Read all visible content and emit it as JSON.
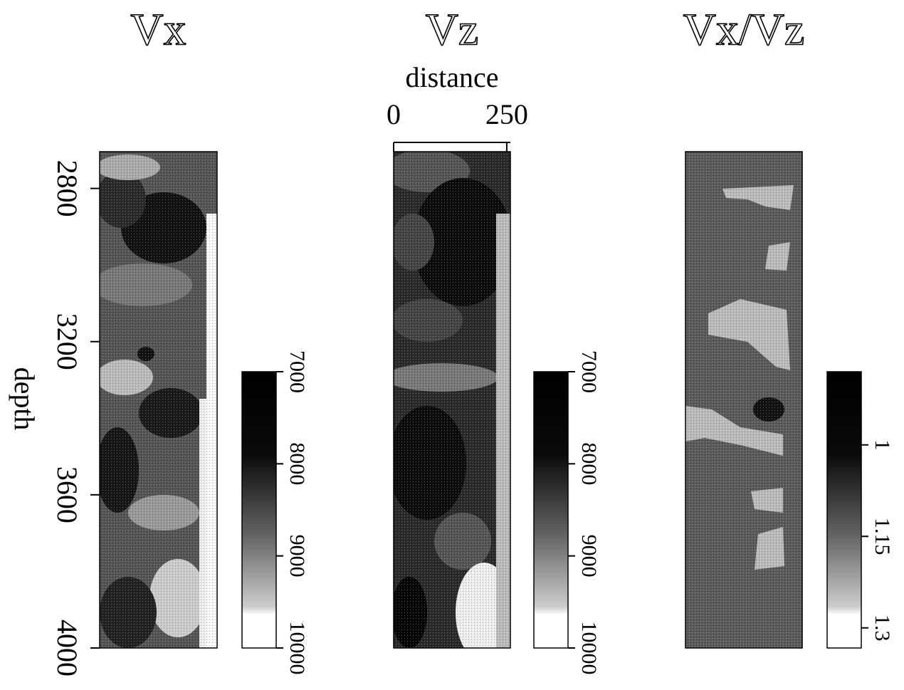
{
  "chart_data": [
    {
      "type": "heatmap",
      "title": "Vx",
      "ylabel": "depth",
      "ylim": [
        2704,
        4000
      ],
      "yticks": [
        2800,
        3200,
        3600,
        4000
      ],
      "colorbar": {
        "lim": [
          7000,
          10000
        ],
        "ticks": [
          7000,
          8000,
          9000,
          10000
        ]
      }
    },
    {
      "type": "heatmap",
      "title": "Vz",
      "xlabel": "distance",
      "xlim": [
        0,
        258
      ],
      "xticks": [
        0,
        250
      ],
      "colorbar": {
        "lim": [
          7000,
          10000
        ],
        "ticks": [
          7000,
          8000,
          9000,
          10000
        ]
      }
    },
    {
      "type": "heatmap",
      "title": "Vx/Vz",
      "colorbar": {
        "lim": [
          0.88,
          1.333
        ],
        "ticks": [
          1,
          1.15,
          1.3
        ]
      }
    }
  ]
}
